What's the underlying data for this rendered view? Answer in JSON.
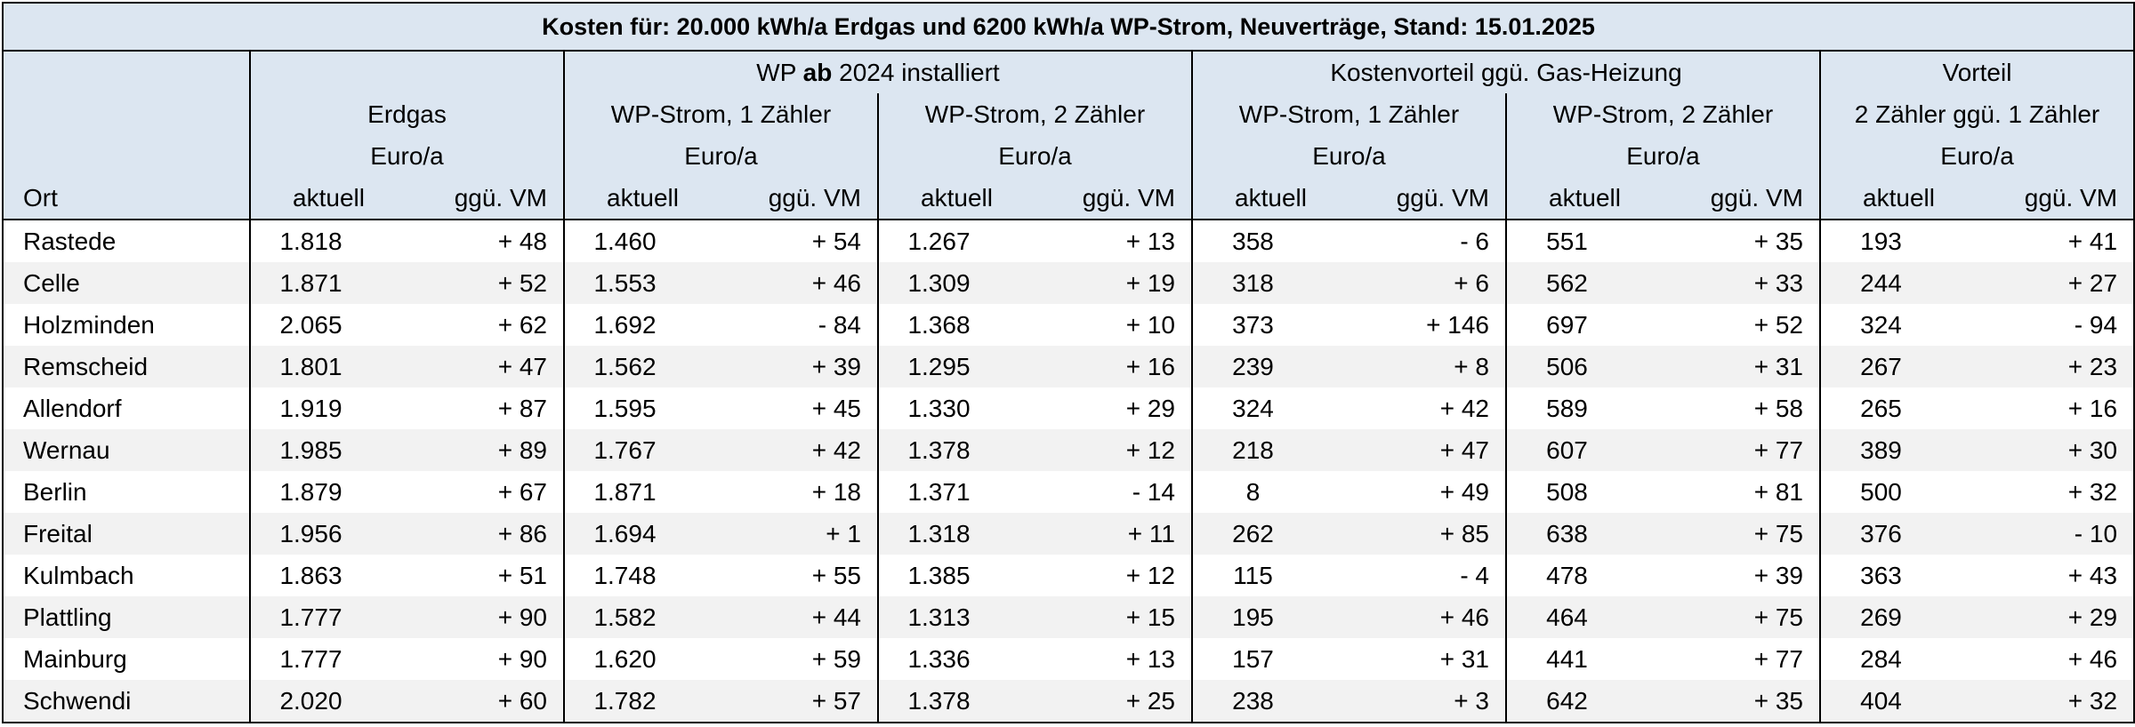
{
  "title": "Kosten für: 20.000 kWh/a Erdgas und 6200 kWh/a WP-Strom, Neuverträge, Stand: 15.01.2025",
  "groups": {
    "wp_prefix": "WP",
    "wp_bold": "ab",
    "wp_suffix": "2024 installiert",
    "vorteil_gas": "Kostenvorteil ggü. Gas-Heizung",
    "vorteil": "Vorteil",
    "vorteil_sub": "2 Zähler ggü. 1 Zähler"
  },
  "columns": {
    "erdgas": "Erdgas",
    "wp1": "WP-Strom, 1 Zähler",
    "wp2": "WP-Strom, 2 Zähler",
    "unit": "Euro/a",
    "ort": "Ort",
    "aktuell": "aktuell",
    "vm": "ggü. VM"
  },
  "rows": [
    {
      "ort": "Rastede",
      "v": [
        "1.818",
        "+ 48",
        "1.460",
        "+ 54",
        "1.267",
        "+ 13",
        "358",
        "- 6",
        "551",
        "+ 35",
        "193",
        "+ 41"
      ]
    },
    {
      "ort": "Celle",
      "v": [
        "1.871",
        "+ 52",
        "1.553",
        "+ 46",
        "1.309",
        "+ 19",
        "318",
        "+ 6",
        "562",
        "+ 33",
        "244",
        "+ 27"
      ]
    },
    {
      "ort": "Holzminden",
      "v": [
        "2.065",
        "+ 62",
        "1.692",
        "- 84",
        "1.368",
        "+ 10",
        "373",
        "+ 146",
        "697",
        "+ 52",
        "324",
        "- 94"
      ]
    },
    {
      "ort": "Remscheid",
      "v": [
        "1.801",
        "+ 47",
        "1.562",
        "+ 39",
        "1.295",
        "+ 16",
        "239",
        "+ 8",
        "506",
        "+ 31",
        "267",
        "+ 23"
      ]
    },
    {
      "ort": "Allendorf",
      "v": [
        "1.919",
        "+ 87",
        "1.595",
        "+ 45",
        "1.330",
        "+ 29",
        "324",
        "+ 42",
        "589",
        "+ 58",
        "265",
        "+ 16"
      ]
    },
    {
      "ort": "Wernau",
      "v": [
        "1.985",
        "+ 89",
        "1.767",
        "+ 42",
        "1.378",
        "+ 12",
        "218",
        "+ 47",
        "607",
        "+ 77",
        "389",
        "+ 30"
      ]
    },
    {
      "ort": "Berlin",
      "v": [
        "1.879",
        "+ 67",
        "1.871",
        "+ 18",
        "1.371",
        "- 14",
        "8",
        "+ 49",
        "508",
        "+ 81",
        "500",
        "+ 32"
      ]
    },
    {
      "ort": "Freital",
      "v": [
        "1.956",
        "+ 86",
        "1.694",
        "+ 1",
        "1.318",
        "+ 11",
        "262",
        "+ 85",
        "638",
        "+ 75",
        "376",
        "- 10"
      ]
    },
    {
      "ort": "Kulmbach",
      "v": [
        "1.863",
        "+ 51",
        "1.748",
        "+ 55",
        "1.385",
        "+ 12",
        "115",
        "- 4",
        "478",
        "+ 39",
        "363",
        "+ 43"
      ]
    },
    {
      "ort": "Plattling",
      "v": [
        "1.777",
        "+ 90",
        "1.582",
        "+ 44",
        "1.313",
        "+ 15",
        "195",
        "+ 46",
        "464",
        "+ 75",
        "269",
        "+ 29"
      ]
    },
    {
      "ort": "Mainburg",
      "v": [
        "1.777",
        "+ 90",
        "1.620",
        "+ 59",
        "1.336",
        "+ 13",
        "157",
        "+ 31",
        "441",
        "+ 77",
        "284",
        "+ 46"
      ]
    },
    {
      "ort": "Schwendi",
      "v": [
        "2.020",
        "+ 60",
        "1.782",
        "+ 57",
        "1.378",
        "+ 25",
        "238",
        "+ 3",
        "642",
        "+ 35",
        "404",
        "+ 32"
      ]
    }
  ]
}
